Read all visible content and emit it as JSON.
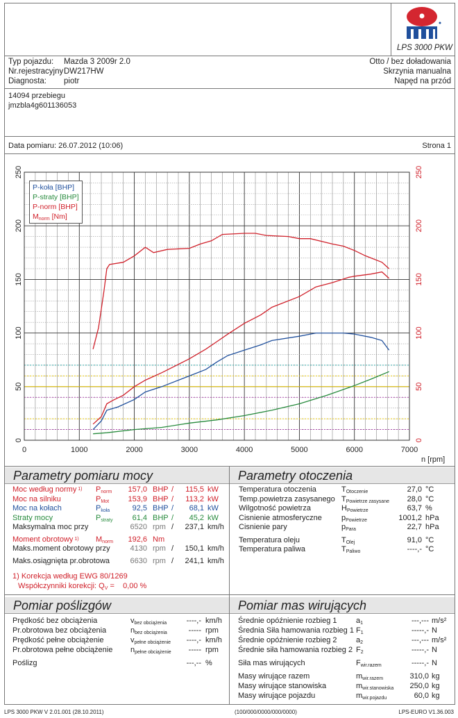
{
  "header": {
    "logo_text": "MAHA",
    "logo_ring_text": "Maschinenbau Haldenwang",
    "model": "LPS 3000 PKW"
  },
  "vehicle": {
    "type_label": "Typ pojazdu:",
    "type_value": "Mazda 3 2009r 2.0",
    "reg_label": "Nr.rejestracyjny",
    "reg_value": "DW217HW",
    "diag_label": "Diagnosta:",
    "diag_value": "piotr",
    "engine": "Otto / bez doładowania",
    "gearbox": "Skrzynia manualna",
    "drive": "Napęd na przód"
  },
  "notes": [
    "14094 przebiegu",
    "jmzbla4g601136053"
  ],
  "date_row": {
    "date": "Data pomiaru: 26.07.2012 (10:06)",
    "page": "Strona 1"
  },
  "chart_data": {
    "type": "line",
    "xlabel": "n [rpm]",
    "xlim": [
      0,
      7000
    ],
    "xticks": [
      0,
      1000,
      2000,
      3000,
      4000,
      5000,
      6000,
      7000
    ],
    "ylim": [
      0,
      250
    ],
    "yticks": [
      0,
      50,
      100,
      150,
      200,
      250
    ],
    "grid": true,
    "legend_position": "top-left",
    "series": [
      {
        "name": "P-koła [BHP]",
        "color": "#1f4f9c",
        "x": [
          1250,
          1400,
          1500,
          1700,
          2000,
          2200,
          2500,
          3000,
          3300,
          3500,
          3700,
          4000,
          4300,
          4500,
          5000,
          5300,
          5800,
          6000,
          6300,
          6500,
          6630
        ],
        "y": [
          10,
          18,
          28,
          31,
          38,
          45,
          50,
          60,
          66,
          73,
          79,
          84,
          89,
          93,
          97,
          100,
          100,
          99,
          96,
          93,
          84
        ]
      },
      {
        "name": "P-straty [BHP]",
        "color": "#268a3c",
        "x": [
          1250,
          1500,
          2000,
          2500,
          3000,
          3500,
          4000,
          4500,
          5000,
          5500,
          6000,
          6300,
          6630
        ],
        "y": [
          6,
          7,
          10,
          12,
          16,
          19,
          23,
          28,
          34,
          42,
          51,
          57,
          64
        ]
      },
      {
        "name": "P-norm [BHP]",
        "color": "#d0202a",
        "x": [
          1250,
          1400,
          1500,
          1600,
          1800,
          2000,
          2200,
          2500,
          3000,
          3300,
          3500,
          3700,
          4000,
          4300,
          4500,
          5000,
          5300,
          5600,
          5900,
          6000,
          6300,
          6500,
          6630
        ],
        "y": [
          15,
          22,
          34,
          37,
          42,
          50,
          56,
          63,
          76,
          85,
          92,
          99,
          109,
          117,
          124,
          134,
          143,
          147,
          152,
          153,
          155,
          157,
          151
        ]
      },
      {
        "name": "Mnorm [Nm]",
        "legend_main": "M",
        "legend_sub": "norm",
        "legend_unit": " [Nm]",
        "color": "#d0202a",
        "x": [
          1250,
          1350,
          1450,
          1500,
          1550,
          1800,
          2000,
          2200,
          2350,
          2600,
          3000,
          3200,
          3400,
          3600,
          4000,
          4200,
          4400,
          4800,
          5000,
          5200,
          5600,
          5800,
          6000,
          6200,
          6500,
          6630
        ],
        "y": [
          85,
          105,
          140,
          160,
          164,
          166,
          172,
          180,
          175,
          178,
          179,
          183,
          186,
          192,
          193,
          193,
          191,
          190,
          188,
          188,
          183,
          181,
          177,
          172,
          166,
          160
        ]
      }
    ]
  },
  "power": {
    "title": "Parametry pomiaru mocy",
    "rows": [
      {
        "label": "Moc według normy",
        "note": "1)",
        "sym": "P",
        "sub": "norm",
        "val": "157,0",
        "u1": "BHP",
        "sep": "/",
        "val2": "115,5",
        "u2": "kW",
        "cls": "red"
      },
      {
        "label": "Moc na silniku",
        "sym": "P",
        "sub": "Mot",
        "val": "153,9",
        "u1": "BHP",
        "sep": "/",
        "val2": "113,2",
        "u2": "kW",
        "cls": "red"
      },
      {
        "label": "Moc na kołach",
        "sym": "P",
        "sub": "koła",
        "val": "92,5",
        "u1": "BHP",
        "sep": "/",
        "val2": "68,1",
        "u2": "kW",
        "cls": "blue"
      },
      {
        "label": "Straty mocy",
        "sym": "P",
        "sub": "straty",
        "val": "61,4",
        "u1": "BHP",
        "sep": "/",
        "val2": "45,2",
        "u2": "kW",
        "cls": "green"
      },
      {
        "label": "Maksymalna moc przy",
        "val": "6520",
        "u1": "rpm",
        "sep": "/",
        "val2": "237,1",
        "u2": "km/h",
        "cls": "",
        "grey": true
      },
      {
        "label": "Moment obrotowy",
        "note": "1)",
        "sym": "M",
        "sub": "norm",
        "val": "192,6",
        "u1": "Nm",
        "cls": "red",
        "gap": true
      },
      {
        "label": "Maks.moment obrotowy przy",
        "val": "4130",
        "u1": "rpm",
        "sep": "/",
        "val2": "150,1",
        "u2": "km/h",
        "cls": "",
        "grey": true
      },
      {
        "label": "Maks.osiągnięta pr.obrotowa",
        "val": "6630",
        "u1": "rpm",
        "sep": "/",
        "val2": "241,1",
        "u2": "km/h",
        "cls": "",
        "grey": true,
        "gap": true
      }
    ],
    "footnote1": "1) Korekcja według EWG 80/1269",
    "footnote2": "Współczynniki korekcji: Q",
    "footnote2_sub": "V",
    "footnote2_val": "=    0,00 %"
  },
  "ambient": {
    "title": "Parametry otoczenia",
    "rows": [
      {
        "label": "Temperatura otoczenia",
        "sym": "T",
        "sub": "Otoczenie",
        "val": "27,0",
        "unit": "°C"
      },
      {
        "label": "Temp.powietrza zasysanego",
        "sym": "T",
        "sub": "Powietrze zasysane",
        "val": "28,0",
        "unit": "°C"
      },
      {
        "label": "Wilgotność powietrza",
        "sym": "H",
        "sub": "Powietrze",
        "val": "63,7",
        "unit": "%"
      },
      {
        "label": "Cisnienie atmosferyczne",
        "sym": "p",
        "sub": "Powietrze",
        "val": "1001,2",
        "unit": "hPa"
      },
      {
        "label": "Cisnienie pary",
        "sym": "p",
        "sub": "Para",
        "val": "22,7",
        "unit": "hPa"
      },
      {
        "label": "Temperatura oleju",
        "sym": "T",
        "sub": "Olej",
        "val": "91,0",
        "unit": "°C",
        "gap": true
      },
      {
        "label": "Temperatura paliwa",
        "sym": "T",
        "sub": "Paliwo",
        "val": "----,-",
        "unit": "°C"
      }
    ]
  },
  "slip": {
    "title": "Pomiar poślizgów",
    "rows": [
      {
        "label": "Prędkość bez obciążenia",
        "sym": "v",
        "sub": "bez obciążenia",
        "val": "----,-",
        "unit": "km/h"
      },
      {
        "label": "Pr.obrotowa bez obciążenia",
        "sym": "n",
        "sub": "bez obciążenia",
        "val": "-----",
        "unit": "rpm"
      },
      {
        "label": "Prędkość pełne obciążenie",
        "sym": "v",
        "sub": "pełne obciążenie",
        "val": "----,-",
        "unit": "km/h"
      },
      {
        "label": "Pr.obrotowa pełne obciążenie",
        "sym": "n",
        "sub": "pełne obciążenie",
        "val": "-----",
        "unit": "rpm"
      },
      {
        "label": "Poślizg",
        "val": "---,--",
        "unit": "%",
        "gap": true
      }
    ]
  },
  "masses": {
    "title": "Pomiar mas wirujących",
    "rows": [
      {
        "label": "Średnie opóźnienie rozbieg 1",
        "sym": "a",
        "sub": "1",
        "val": "---,---",
        "unit": "m/s²"
      },
      {
        "label": "Średnia Siła hamowania rozbieg 1",
        "sym": "F",
        "sub": "1",
        "val": "-----,-",
        "unit": "N"
      },
      {
        "label": "Średnie opóźnienie rozbieg 2",
        "sym": "a",
        "sub": "2",
        "val": "---,---",
        "unit": "m/s²"
      },
      {
        "label": "Średnie siła hamowania rozbieg 2",
        "sym": "F",
        "sub": "2",
        "val": "-----,-",
        "unit": "N"
      },
      {
        "label": "Siła mas wirujących",
        "sym": "F",
        "sub": "wir.razem",
        "val": "-----,-",
        "unit": "N",
        "gap": true
      },
      {
        "label": "Masy wirujące razem",
        "sym": "m",
        "sub": "wir.razem",
        "val": "310,0",
        "unit": "kg",
        "gap": true
      },
      {
        "label": "Masy wirujące stanowiska",
        "sym": "m",
        "sub": "wir.stanowiska",
        "val": "250,0",
        "unit": "kg"
      },
      {
        "label": "Masy wirujące pojazdu",
        "sym": "m",
        "sub": "wir.pojazdu",
        "val": "60,0",
        "unit": "kg"
      }
    ]
  },
  "footer": {
    "left": "LPS 3000 PKW V 2.01.001 (28.10.2011)",
    "center": "(100/000/0000/000/0000)",
    "right": "LPS-EURO V1.36.003"
  }
}
